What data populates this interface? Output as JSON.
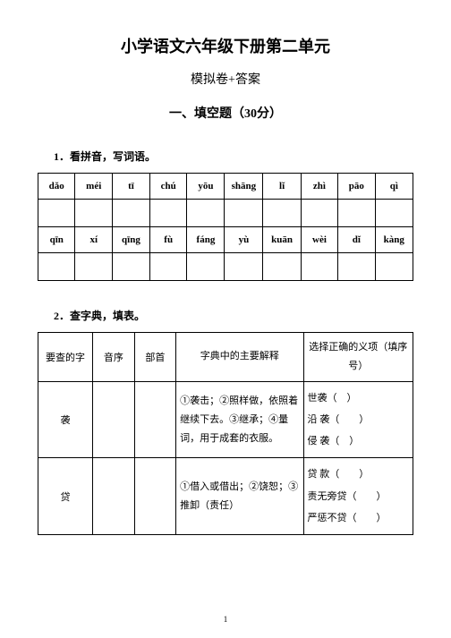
{
  "title": "小学语文六年级下册第二单元",
  "subtitle": "模拟卷+答案",
  "section": "一、填空题（30分）",
  "q1": {
    "number": "1．看拼音，写词语。",
    "row1": [
      "dǎo",
      "méi",
      "tī",
      "chú",
      "yōu",
      "shāng",
      "lǐ",
      "zhì",
      "pāo",
      "qì"
    ],
    "row2": [
      "qīn",
      "xí",
      "qīng",
      "fù",
      "fáng",
      "yù",
      "kuān",
      "wèi",
      "dǐ",
      "kàng"
    ]
  },
  "q2": {
    "number": "2．查字典，填表。",
    "headers": [
      "要查的字",
      "音序",
      "部首",
      "字典中的主要解释",
      "选择正确的义项（填序号）"
    ],
    "rows": [
      {
        "char": "袭",
        "meanings": "①袭击；②照样做，依照着继续下去。③继承；④量词，用于成套的衣服。",
        "choices": "世袭（　）\n沿 袭（　　）\n侵 袭（　）"
      },
      {
        "char": "贷",
        "meanings": "①借入或借出；②饶恕；③推卸（责任）",
        "choices": "贷 款（　　）\n责无旁贷（　　）\n严惩不贷（　　）"
      }
    ]
  },
  "pagenum": "1",
  "colors": {
    "text": "#000000",
    "background": "#ffffff",
    "border": "#000000"
  }
}
